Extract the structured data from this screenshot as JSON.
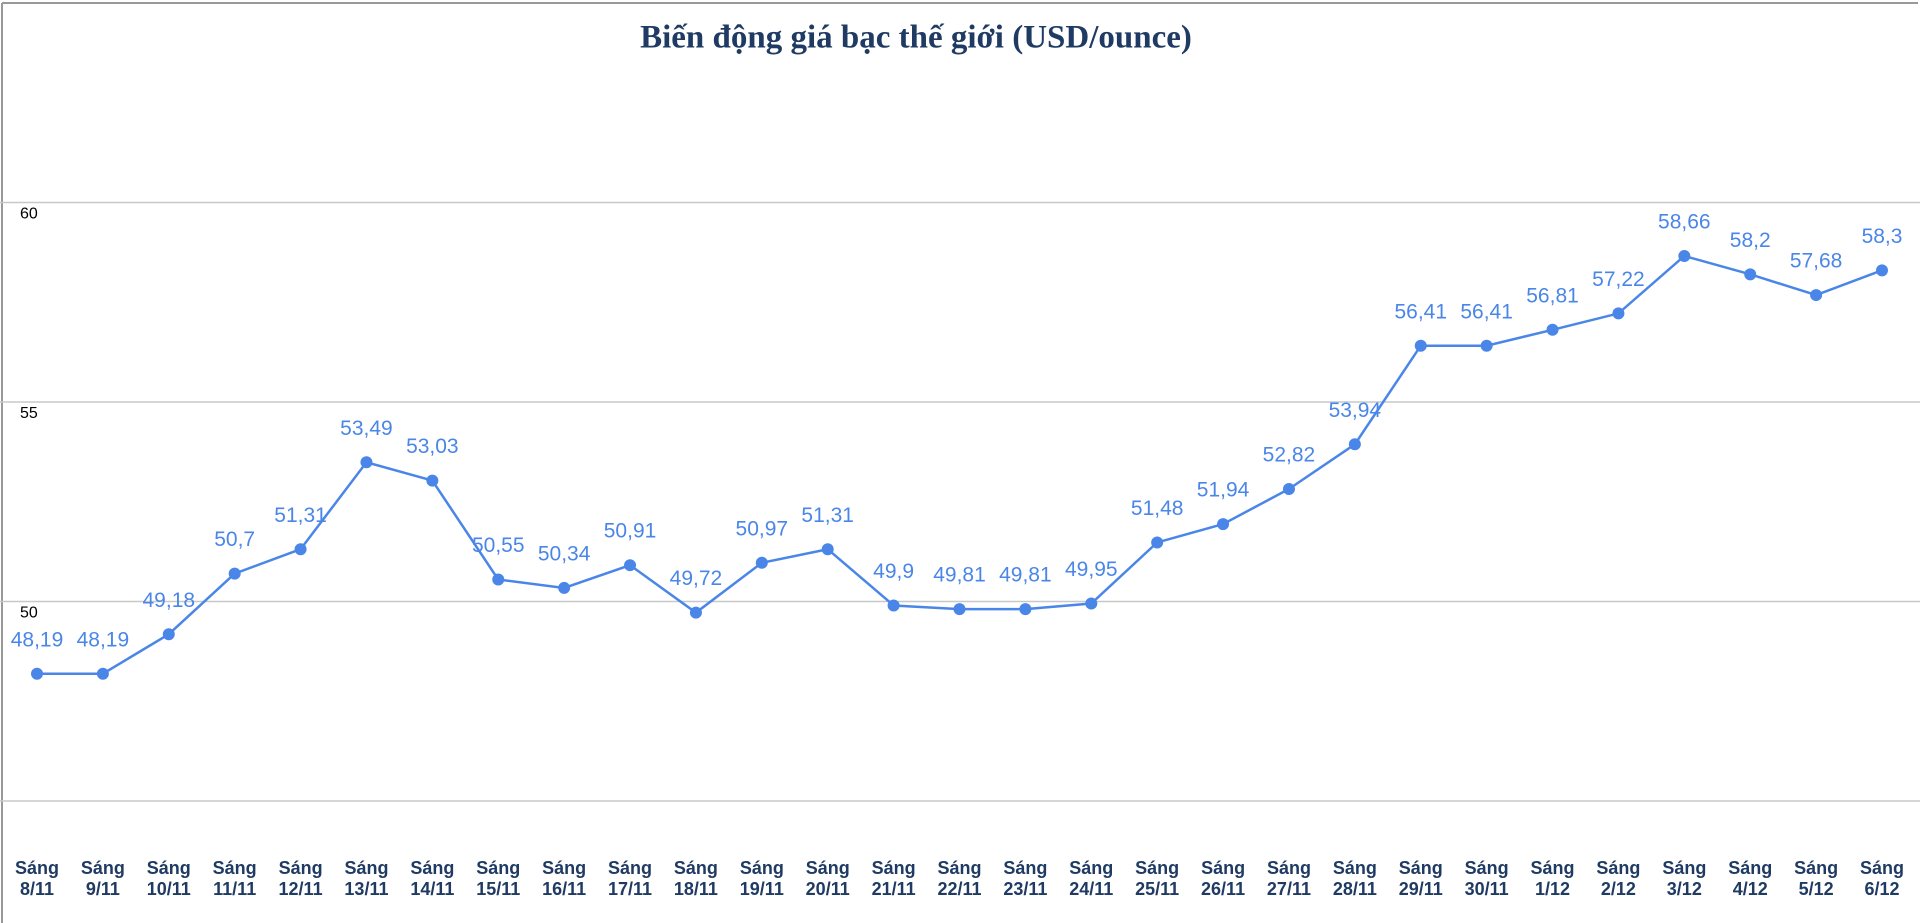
{
  "chart_data": {
    "type": "line",
    "title": "Biến động giá bạc thế giới (USD/ounce)",
    "categories": [
      "Sáng 8/11",
      "Sáng 9/11",
      "Sáng 10/11",
      "Sáng 11/11",
      "Sáng 12/11",
      "Sáng 13/11",
      "Sáng 14/11",
      "Sáng 15/11",
      "Sáng 16/11",
      "Sáng 17/11",
      "Sáng 18/11",
      "Sáng 19/11",
      "Sáng 20/11",
      "Sáng 21/11",
      "Sáng 22/11",
      "Sáng 23/11",
      "Sáng 24/11",
      "Sáng 25/11",
      "Sáng 26/11",
      "Sáng 27/11",
      "Sáng 28/11",
      "Sáng 29/11",
      "Sáng 30/11",
      "Sáng 1/12",
      "Sáng 2/12",
      "Sáng 3/12",
      "Sáng 4/12",
      "Sáng 5/12",
      "Sáng 6/12"
    ],
    "values": [
      48.19,
      48.19,
      49.18,
      50.7,
      51.31,
      53.49,
      53.03,
      50.55,
      50.34,
      50.91,
      49.72,
      50.97,
      51.31,
      49.9,
      49.81,
      49.81,
      49.95,
      51.48,
      51.94,
      52.82,
      53.94,
      56.41,
      56.41,
      56.81,
      57.22,
      58.66,
      58.2,
      57.68,
      58.3
    ],
    "value_labels": [
      "48,19",
      "48,19",
      "49,18",
      "50,7",
      "51,31",
      "53,49",
      "53,03",
      "50,55",
      "50,34",
      "50,91",
      "49,72",
      "50,97",
      "51,31",
      "49,9",
      "49,81",
      "49,81",
      "49,95",
      "51,48",
      "51,94",
      "52,82",
      "53,94",
      "56,41",
      "56,41",
      "56,81",
      "57,22",
      "58,66",
      "58,2",
      "57,68",
      "58,3"
    ],
    "color": "#4a86e8",
    "ylim": [
      45,
      65
    ],
    "yticks": [
      50,
      55,
      60
    ],
    "grid": true
  }
}
